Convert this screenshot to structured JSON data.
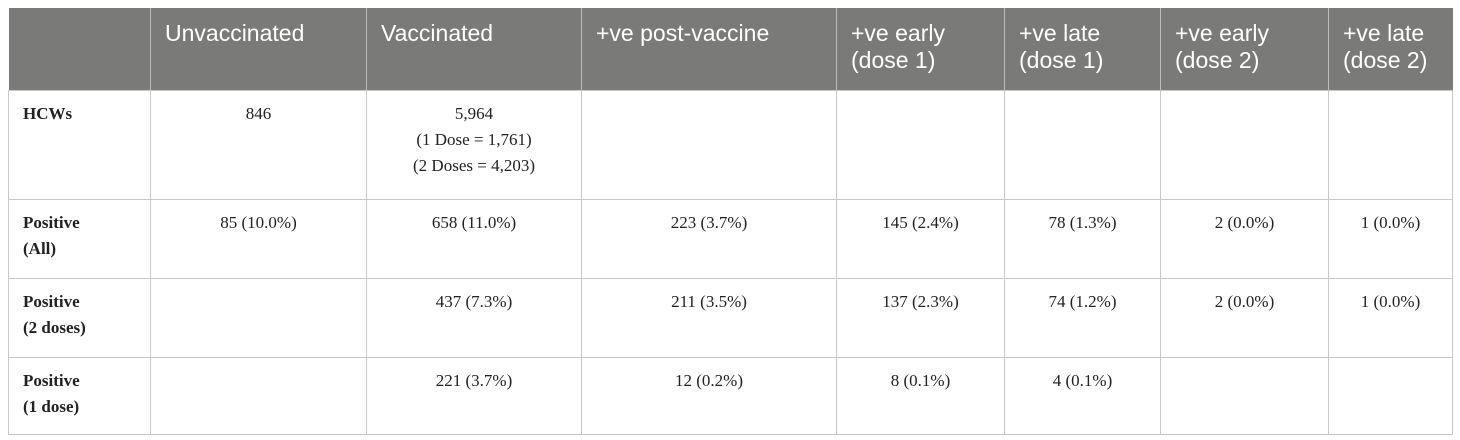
{
  "table": {
    "headers": [
      "",
      "Unvaccinated",
      "Vaccinated",
      "+ve post-vaccine",
      [
        "+ve early",
        "(dose 1)"
      ],
      [
        "+ve late",
        "(dose 1)"
      ],
      [
        "+ve early",
        "(dose 2)"
      ],
      [
        "+ve late",
        "(dose 2)"
      ]
    ],
    "rows": [
      {
        "label": [
          "HCWs"
        ],
        "cells": [
          [
            "846"
          ],
          [
            "5,964",
            "(1 Dose = 1,761)",
            "(2 Doses = 4,203)"
          ],
          [
            ""
          ],
          [
            ""
          ],
          [
            ""
          ],
          [
            ""
          ],
          [
            ""
          ]
        ]
      },
      {
        "label": [
          "Positive",
          "(All)"
        ],
        "cells": [
          [
            "85 (10.0%)"
          ],
          [
            "658 (11.0%)"
          ],
          [
            "223 (3.7%)"
          ],
          [
            "145 (2.4%)"
          ],
          [
            "78 (1.3%)"
          ],
          [
            "2 (0.0%)"
          ],
          [
            "1 (0.0%)"
          ]
        ]
      },
      {
        "label": [
          "Positive",
          "(2 doses)"
        ],
        "cells": [
          [
            ""
          ],
          [
            "437 (7.3%)"
          ],
          [
            "211 (3.5%)"
          ],
          [
            "137 (2.3%)"
          ],
          [
            "74 (1.2%)"
          ],
          [
            "2 (0.0%)"
          ],
          [
            "1 (0.0%)"
          ]
        ]
      },
      {
        "label": [
          "Positive",
          "(1 dose)"
        ],
        "cells": [
          [
            ""
          ],
          [
            "221 (3.7%)"
          ],
          [
            "12 (0.2%)"
          ],
          [
            "8 (0.1%)"
          ],
          [
            "4 (0.1%)"
          ],
          [
            ""
          ],
          [
            ""
          ]
        ]
      }
    ]
  },
  "colors": {
    "header_bg": "#7a7a78",
    "header_text": "#ffffff",
    "border": "#c8c8c8",
    "body_text": "#222222"
  }
}
